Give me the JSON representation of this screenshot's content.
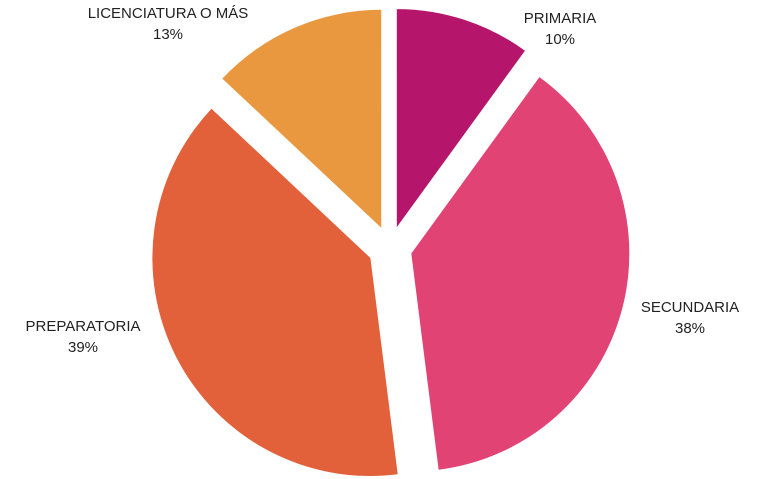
{
  "chart_data": {
    "type": "pie",
    "categories": [
      "PRIMARIA",
      "SECUNDARIA",
      "PREPARATORIA",
      "LICENCIATURA O MÁS"
    ],
    "values": [
      10,
      38,
      39,
      13
    ],
    "value_labels": [
      "10%",
      "38%",
      "39%",
      "13%"
    ],
    "colors": [
      "#b5166b",
      "#e04374",
      "#e2603a",
      "#ea9840"
    ],
    "exploded": true
  }
}
